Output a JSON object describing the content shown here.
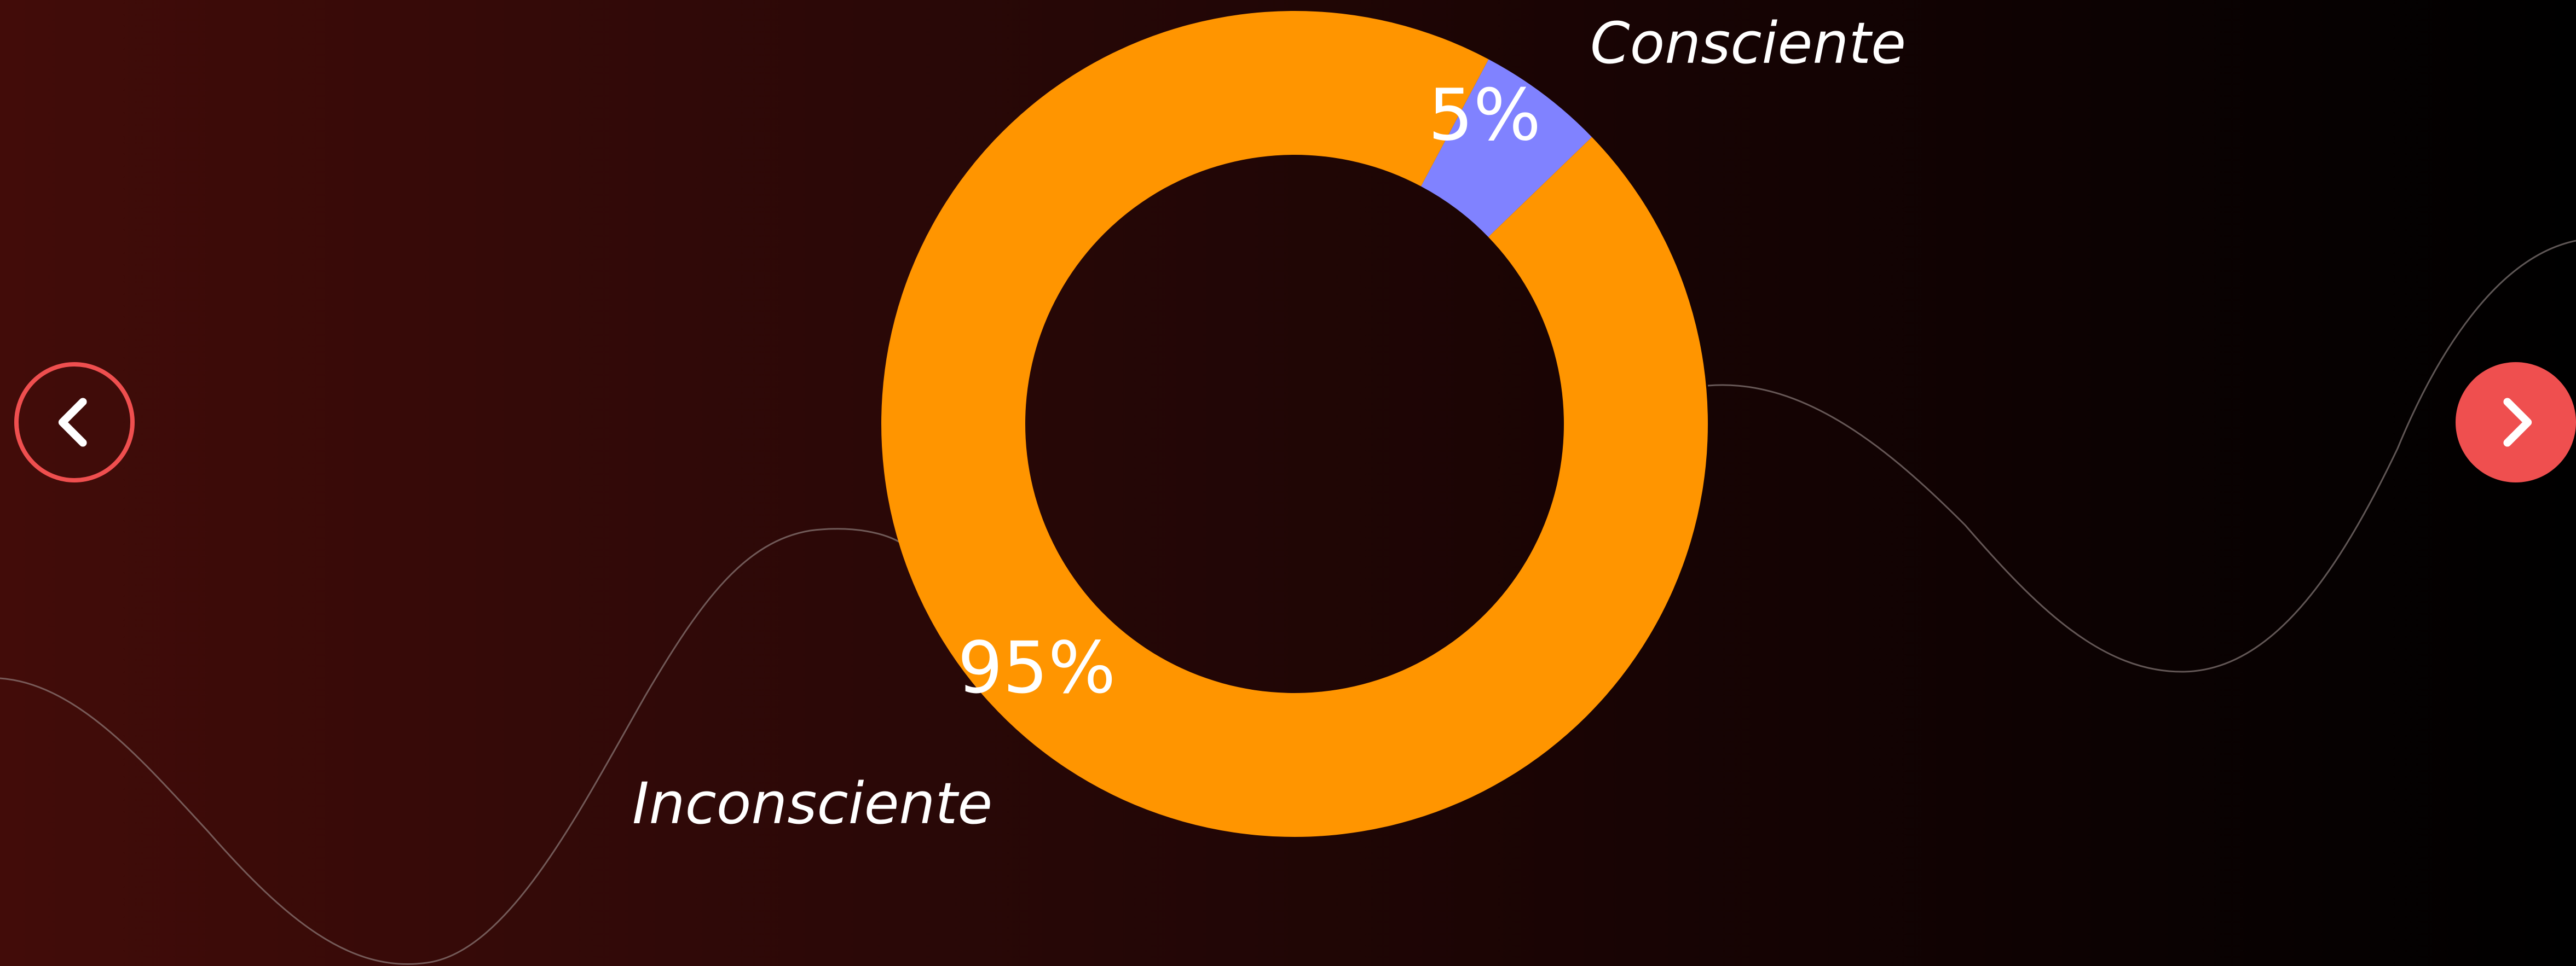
{
  "chart_data": {
    "type": "pie",
    "style": "donut",
    "slices": [
      {
        "category": "Consciente",
        "value": 5,
        "label": "5%",
        "color": "#8082ff"
      },
      {
        "category": "Inconsciente",
        "value": 95,
        "label": "95%",
        "color": "#ff9500"
      }
    ]
  },
  "navigation": {
    "prev_icon": "chevron-left-icon",
    "next_icon": "chevron-right-icon",
    "accent_color": "#ef4f4f"
  }
}
